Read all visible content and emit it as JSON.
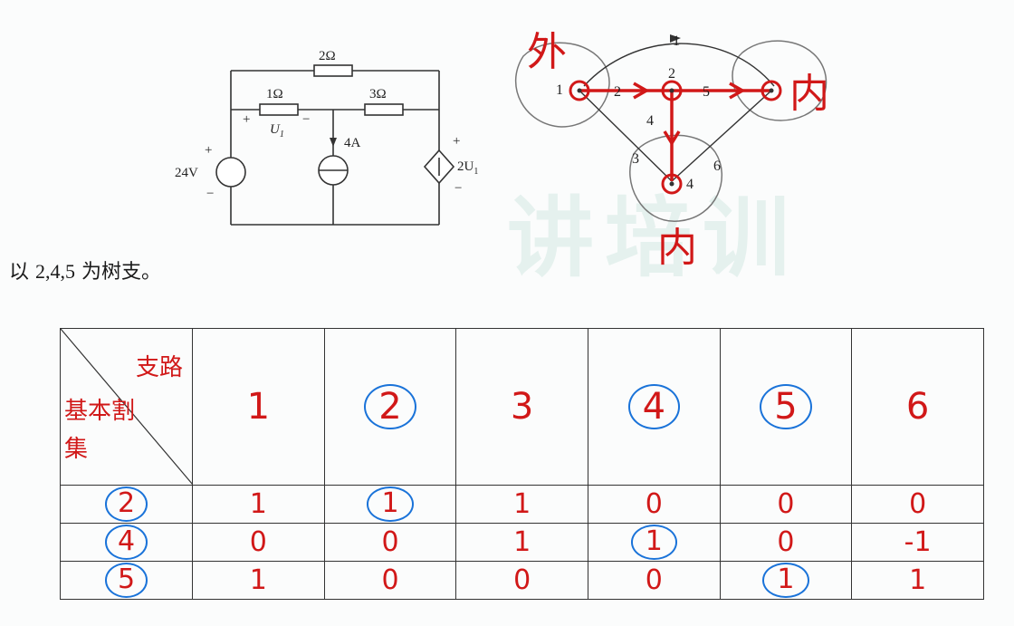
{
  "watermark": "讲培训",
  "circuit": {
    "resistor_top": "2Ω",
    "resistor_left": "1Ω",
    "resistor_right": "3Ω",
    "voltage_source": "24V",
    "current_source": "4A",
    "dependent_source": "2U",
    "dependent_sub": "1",
    "u1_label": "U",
    "u1_sub": "1",
    "plus": "+",
    "minus": "−"
  },
  "graph": {
    "node_labels": [
      "1",
      "2",
      "4"
    ],
    "branch_labels": [
      "1",
      "2",
      "3",
      "4",
      "5",
      "6"
    ],
    "annotation_outer": "外",
    "annotation_inner_right": "内",
    "annotation_inner_bottom": "内"
  },
  "caption": {
    "prefix": "以 ",
    "numbers": "2,4,5",
    "suffix": " 为树支。"
  },
  "table": {
    "corner_top": "支路",
    "corner_bottom": "基本割集",
    "branches": [
      {
        "label": "1",
        "circled": false
      },
      {
        "label": "2",
        "circled": true
      },
      {
        "label": "3",
        "circled": false
      },
      {
        "label": "4",
        "circled": true
      },
      {
        "label": "5",
        "circled": true
      },
      {
        "label": "6",
        "circled": false
      }
    ],
    "rows": [
      {
        "cutset": "2",
        "values": [
          "1",
          "1",
          "1",
          "0",
          "0",
          "0"
        ],
        "circled_index": 1
      },
      {
        "cutset": "4",
        "values": [
          "0",
          "0",
          "1",
          "1",
          "0",
          "-1"
        ],
        "circled_index": 3
      },
      {
        "cutset": "5",
        "values": [
          "1",
          "0",
          "0",
          "0",
          "1",
          "1"
        ],
        "circled_index": 4
      }
    ]
  },
  "colors": {
    "ink_red": "#d11818",
    "ink_blue": "#1a73d9",
    "watermark": "#e5f1ee"
  }
}
